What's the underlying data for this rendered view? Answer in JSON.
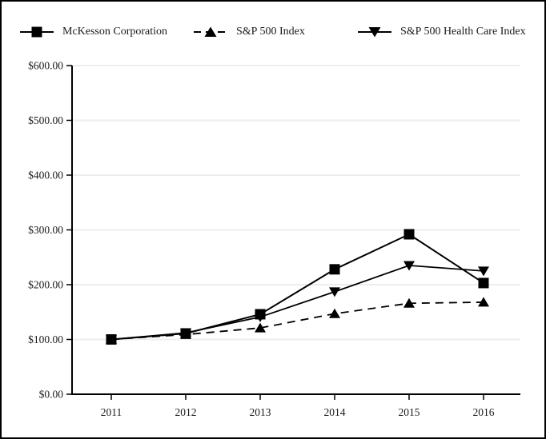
{
  "legend": {
    "items": [
      {
        "label": "McKesson Corporation",
        "marker": "square",
        "line": "solid"
      },
      {
        "label": "S&P 500 Index",
        "marker": "triangle-up",
        "line": "dashed"
      },
      {
        "label": "S&P 500 Health Care Index",
        "marker": "triangle-down",
        "line": "solid"
      }
    ]
  },
  "chart_data": {
    "type": "line",
    "title": "",
    "xlabel": "",
    "ylabel": "",
    "x": [
      2011,
      2012,
      2013,
      2014,
      2015,
      2016
    ],
    "xtick_labels": [
      "2011",
      "2012",
      "2013",
      "2014",
      "2015",
      "2016"
    ],
    "ylim": [
      0,
      600
    ],
    "ytick_step": 100,
    "ytick_labels": [
      "$0.00",
      "$100.00",
      "$200.00",
      "$300.00",
      "$400.00",
      "$500.00",
      "$600.00"
    ],
    "grid": "horizontal",
    "legend_position": "top",
    "series": [
      {
        "name": "McKesson Corporation",
        "marker": "square",
        "line": "solid",
        "values": [
          100,
          111,
          146,
          228,
          292,
          203
        ]
      },
      {
        "name": "S&P 500 Index",
        "marker": "triangle-up",
        "line": "dashed",
        "values": [
          100,
          109,
          121,
          147,
          166,
          168
        ]
      },
      {
        "name": "S&P 500 Health Care Index",
        "marker": "triangle-down",
        "line": "solid",
        "values": [
          100,
          112,
          141,
          187,
          235,
          225
        ]
      }
    ],
    "colors": {
      "line": "#000000",
      "grid": "#ededed",
      "text": "#1a1a1a",
      "axis": "#000000",
      "background": "#ffffff"
    }
  }
}
